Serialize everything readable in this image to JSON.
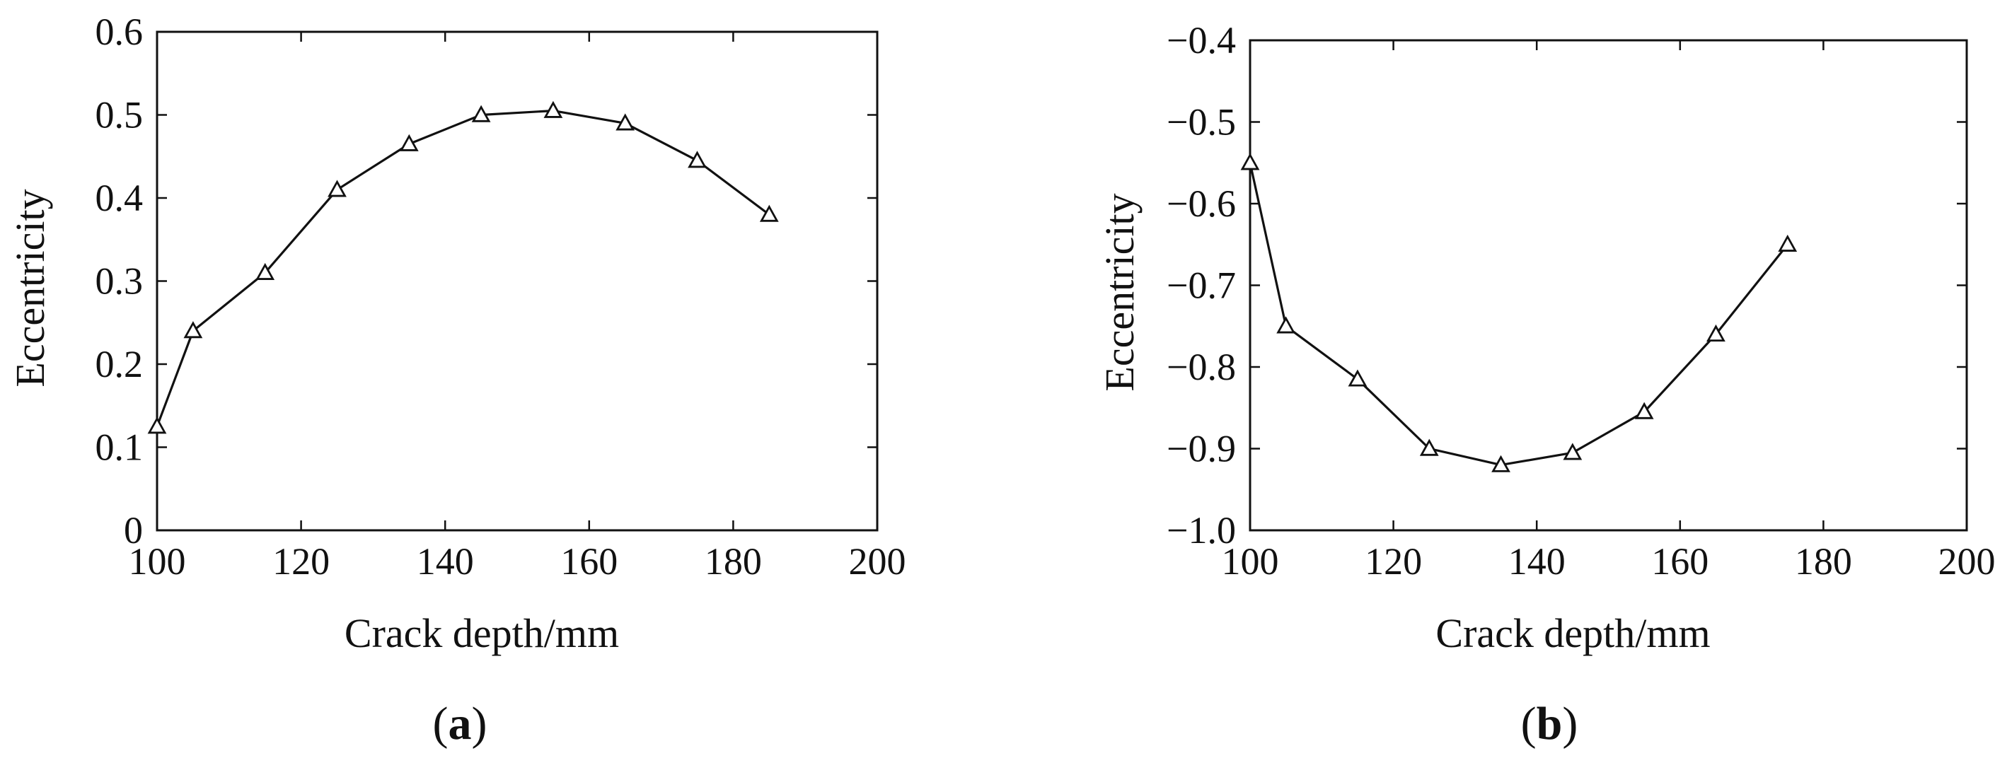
{
  "chart_data": [
    {
      "type": "line",
      "panel_label": "a",
      "title": "",
      "xlabel": "Crack depth/mm",
      "ylabel": "Eccentricity",
      "xlim": [
        100,
        200
      ],
      "ylim": [
        0,
        0.6
      ],
      "xticks": [
        100,
        120,
        140,
        160,
        180,
        200
      ],
      "yticks": [
        0,
        0.1,
        0.2,
        0.3,
        0.4,
        0.5,
        0.6
      ],
      "xtick_labels": [
        "100",
        "120",
        "140",
        "160",
        "180",
        "200"
      ],
      "ytick_labels": [
        "0",
        "0.1",
        "0.2",
        "0.3",
        "0.4",
        "0.5",
        "0.6"
      ],
      "grid": false,
      "marker": "triangle",
      "series": [
        {
          "name": "",
          "x": [
            100,
            105,
            115,
            125,
            135,
            145,
            155,
            165,
            175,
            185
          ],
          "values": [
            0.125,
            0.24,
            0.31,
            0.41,
            0.465,
            0.5,
            0.505,
            0.49,
            0.445,
            0.38
          ]
        }
      ]
    },
    {
      "type": "line",
      "panel_label": "b",
      "title": "",
      "xlabel": "Crack depth/mm",
      "ylabel": "Eccentricity",
      "xlim": [
        100,
        200
      ],
      "ylim": [
        -1.0,
        -0.4
      ],
      "xticks": [
        100,
        120,
        140,
        160,
        180,
        200
      ],
      "yticks": [
        -1.0,
        -0.9,
        -0.8,
        -0.7,
        -0.6,
        -0.5,
        -0.4
      ],
      "xtick_labels": [
        "100",
        "120",
        "140",
        "160",
        "180",
        "200"
      ],
      "ytick_labels": [
        "−1.0",
        "−0.9",
        "−0.8",
        "−0.7",
        "−0.6",
        "−0.5",
        "−0.4"
      ],
      "grid": false,
      "marker": "triangle",
      "series": [
        {
          "name": "",
          "x": [
            100,
            105,
            115,
            125,
            135,
            145,
            155,
            165,
            175
          ],
          "values": [
            -0.55,
            -0.75,
            -0.815,
            -0.9,
            -0.92,
            -0.905,
            -0.855,
            -0.76,
            -0.65
          ]
        }
      ]
    }
  ],
  "colors": {
    "line": "#111111",
    "background": "#ffffff"
  }
}
